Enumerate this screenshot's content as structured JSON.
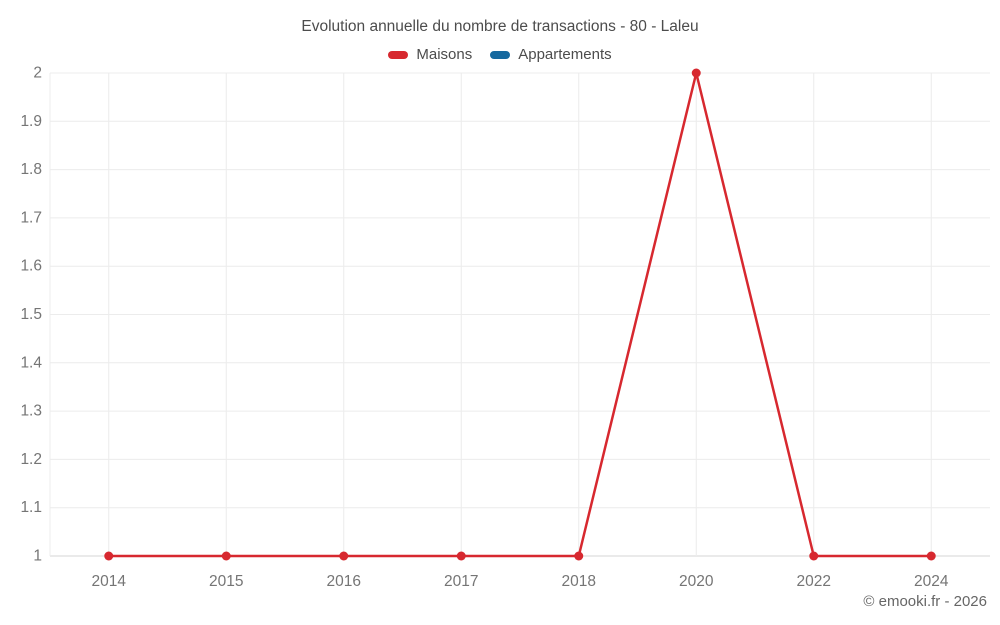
{
  "chart_data": {
    "type": "line",
    "title": "Evolution annuelle du nombre de transactions - 80 - Laleu",
    "watermark": "© emooki.fr - 2026",
    "categories": [
      "2014",
      "2015",
      "2016",
      "2017",
      "2018",
      "2020",
      "2022",
      "2024"
    ],
    "series": [
      {
        "name": "Maisons",
        "color": "#d7282f",
        "values": [
          1,
          1,
          1,
          1,
          1,
          2,
          1,
          1
        ]
      },
      {
        "name": "Appartements",
        "color": "#16699f",
        "values": []
      }
    ],
    "xlabel": "",
    "ylabel": "",
    "ylim": [
      1,
      2
    ],
    "y_tick_labels": [
      "1",
      "1.1",
      "1.2",
      "1.3",
      "1.4",
      "1.5",
      "1.6",
      "1.7",
      "1.8",
      "1.9",
      "2"
    ],
    "grid": true,
    "legend_position": "top",
    "style": {
      "grid_color": "#ececec",
      "axis_color": "#d6d6d6",
      "tick_text_color": "#757575",
      "title_text_color": "#4c4c4c",
      "background": "#ffffff"
    }
  }
}
